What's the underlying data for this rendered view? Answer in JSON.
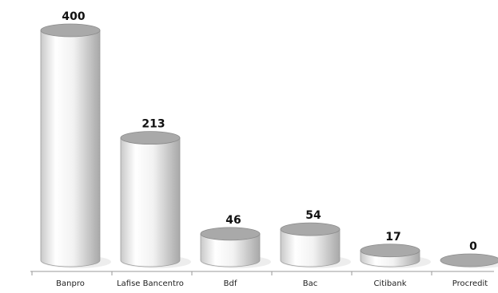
{
  "chart_data": {
    "type": "bar",
    "style": "3d-cylinder",
    "categories": [
      "Banpro",
      "Lafise Bancentro",
      "Bdf",
      "Bac",
      "Citibank",
      "Procredit"
    ],
    "values": [
      400,
      213,
      46,
      54,
      17,
      0
    ],
    "title": "",
    "xlabel": "",
    "ylabel": "",
    "ylim": [
      0,
      400
    ],
    "grid": false,
    "legend": "none",
    "data_labels": true,
    "colors": {
      "body_light": "#ffffff",
      "body_shade": "#bdbdbd",
      "top": "#a9a9a9",
      "top_edge": "#8a8a8a",
      "axis": "#9a9a9a"
    }
  }
}
